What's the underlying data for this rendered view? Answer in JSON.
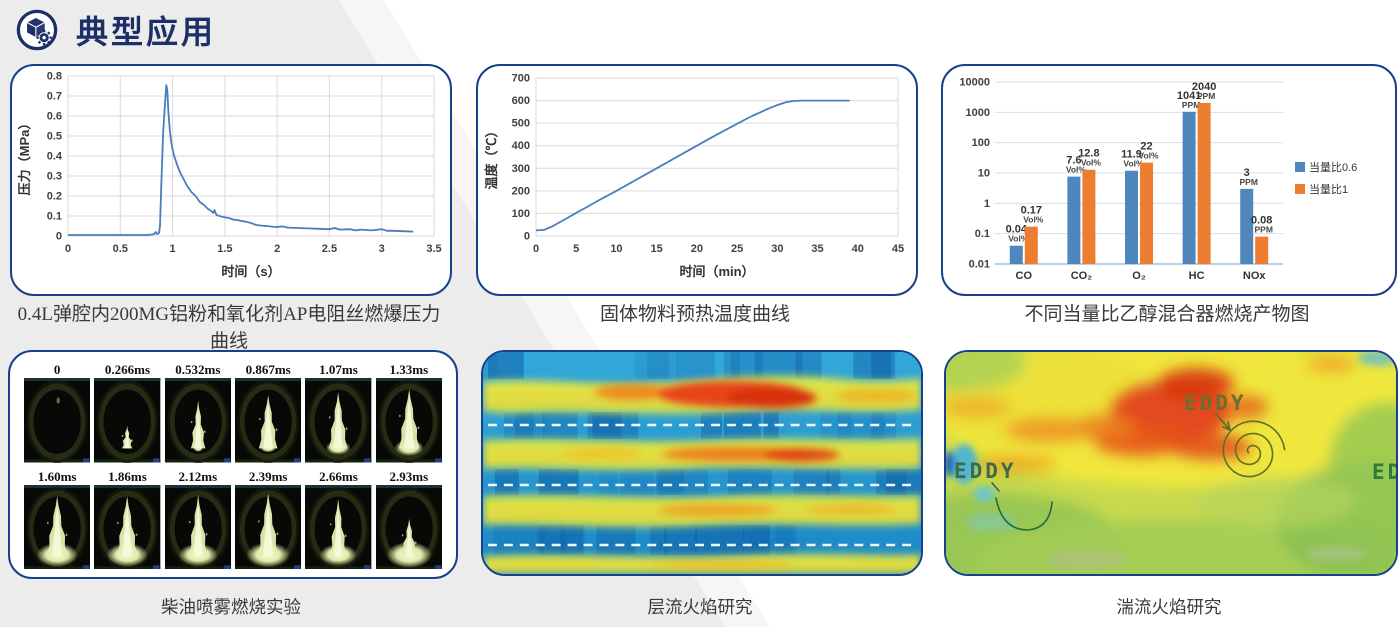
{
  "header": {
    "title": "典型应用",
    "icon": "cube-gear-icon"
  },
  "captions": {
    "pressure": "0.4L弹腔内200MG铝粉和氧化剂AP电阻丝燃爆压力曲线",
    "temperature": "固体物料预热温度曲线",
    "combustion": "不同当量比乙醇混合器燃烧产物图",
    "diesel": "柴油喷雾燃烧实验",
    "laminar": "层流火焰研究",
    "turbulent": "湍流火焰研究"
  },
  "chart_data": [
    {
      "id": "pressure",
      "type": "line",
      "title": "0.4L弹腔内200MG铝粉和氧化剂AP电阻丝燃爆压力曲线",
      "xlabel": "时间（s）",
      "ylabel": "压力（MPa）",
      "xlim": [
        0,
        3.5
      ],
      "ylim": [
        0,
        0.8
      ],
      "xticks": [
        0,
        0.5,
        1,
        1.5,
        2,
        2.5,
        3,
        3.5
      ],
      "yticks": [
        0,
        0.1,
        0.2,
        0.3,
        0.4,
        0.5,
        0.6,
        0.7,
        0.8
      ],
      "grid": "both",
      "line_color": "#4a7ebb",
      "points": [
        [
          0,
          0.005
        ],
        [
          0.2,
          0.005
        ],
        [
          0.4,
          0.005
        ],
        [
          0.6,
          0.005
        ],
        [
          0.75,
          0.005
        ],
        [
          0.82,
          0.008
        ],
        [
          0.84,
          0.02
        ],
        [
          0.85,
          0.01
        ],
        [
          0.87,
          0.015
        ],
        [
          0.88,
          0.05
        ],
        [
          0.895,
          0.3
        ],
        [
          0.91,
          0.52
        ],
        [
          0.925,
          0.64
        ],
        [
          0.94,
          0.755
        ],
        [
          0.95,
          0.73
        ],
        [
          0.96,
          0.62
        ],
        [
          0.975,
          0.52
        ],
        [
          0.99,
          0.46
        ],
        [
          1.01,
          0.41
        ],
        [
          1.04,
          0.36
        ],
        [
          1.07,
          0.32
        ],
        [
          1.1,
          0.29
        ],
        [
          1.14,
          0.25
        ],
        [
          1.18,
          0.22
        ],
        [
          1.22,
          0.2
        ],
        [
          1.26,
          0.17
        ],
        [
          1.3,
          0.155
        ],
        [
          1.34,
          0.135
        ],
        [
          1.37,
          0.125
        ],
        [
          1.39,
          0.115
        ],
        [
          1.4,
          0.13
        ],
        [
          1.42,
          0.105
        ],
        [
          1.46,
          0.098
        ],
        [
          1.5,
          0.093
        ],
        [
          1.54,
          0.09
        ],
        [
          1.58,
          0.082
        ],
        [
          1.62,
          0.08
        ],
        [
          1.66,
          0.075
        ],
        [
          1.7,
          0.072
        ],
        [
          1.75,
          0.065
        ],
        [
          1.8,
          0.055
        ],
        [
          1.85,
          0.052
        ],
        [
          1.9,
          0.05
        ],
        [
          1.95,
          0.047
        ],
        [
          2,
          0.045
        ],
        [
          2.05,
          0.048
        ],
        [
          2.1,
          0.042
        ],
        [
          2.2,
          0.04
        ],
        [
          2.3,
          0.038
        ],
        [
          2.4,
          0.036
        ],
        [
          2.5,
          0.034
        ],
        [
          2.55,
          0.04
        ],
        [
          2.6,
          0.032
        ],
        [
          2.7,
          0.034
        ],
        [
          2.75,
          0.028
        ],
        [
          2.8,
          0.032
        ],
        [
          2.9,
          0.028
        ],
        [
          3,
          0.034
        ],
        [
          3.05,
          0.026
        ],
        [
          3.1,
          0.026
        ],
        [
          3.2,
          0.024
        ],
        [
          3.3,
          0.022
        ]
      ]
    },
    {
      "id": "temperature",
      "type": "line",
      "title": "固体物料预热温度曲线",
      "xlabel": "时间（min）",
      "ylabel": "温度（℃）",
      "xlim": [
        0,
        45
      ],
      "ylim": [
        0,
        700
      ],
      "xticks": [
        0,
        5,
        10,
        15,
        20,
        25,
        30,
        35,
        40,
        45
      ],
      "yticks": [
        0,
        100,
        200,
        300,
        400,
        500,
        600,
        700
      ],
      "grid": "horizontal",
      "line_color": "#4a7ebb",
      "points": [
        [
          0,
          25
        ],
        [
          1,
          27
        ],
        [
          2,
          42
        ],
        [
          3,
          62
        ],
        [
          4,
          82
        ],
        [
          5,
          103
        ],
        [
          6,
          122
        ],
        [
          8,
          162
        ],
        [
          10,
          200
        ],
        [
          12,
          240
        ],
        [
          14,
          280
        ],
        [
          16,
          320
        ],
        [
          18,
          360
        ],
        [
          20,
          400
        ],
        [
          22,
          440
        ],
        [
          24,
          478
        ],
        [
          26,
          516
        ],
        [
          27,
          534
        ],
        [
          28,
          550
        ],
        [
          29,
          566
        ],
        [
          30,
          580
        ],
        [
          31,
          592
        ],
        [
          32,
          598
        ],
        [
          33,
          600
        ],
        [
          35,
          600
        ],
        [
          37,
          600
        ],
        [
          39,
          600
        ]
      ]
    },
    {
      "id": "combustion",
      "type": "bar",
      "scale": "log",
      "title": "不同当量比乙醇混合器燃烧产物图",
      "ylim": [
        0.01,
        10000
      ],
      "ytick_labels": [
        "0.01",
        "0.1",
        "1",
        "10",
        "100",
        "1000",
        "10000"
      ],
      "categories": [
        "CO",
        "CO₂",
        "O₂",
        "HC",
        "NOx"
      ],
      "legend_position": "right",
      "series": [
        {
          "name": "当量比0.6",
          "color": "#4f86be",
          "values": [
            0.04,
            7.6,
            11.9,
            1041,
            3
          ],
          "labels": [
            "0.04",
            "7.6",
            "11.9",
            "1041",
            "3"
          ],
          "units": [
            "Vol%",
            "Vol%",
            "Vol%",
            "PPM",
            "PPM"
          ]
        },
        {
          "name": "当量比1",
          "color": "#ed7d31",
          "values": [
            0.17,
            12.8,
            22,
            2040,
            0.08
          ],
          "labels": [
            "0.17",
            "12.8",
            "22",
            "2040",
            "0.08"
          ],
          "units": [
            "Vol%",
            "Vol%",
            "Vol%",
            "PPM",
            "PPM"
          ]
        }
      ]
    }
  ],
  "diesel_frames": [
    {
      "label": "0",
      "h": 2,
      "w": 1,
      "pool": 0
    },
    {
      "label": "0.266ms",
      "h": 16,
      "w": 5,
      "pool": 0
    },
    {
      "label": "0.532ms",
      "h": 34,
      "w": 7,
      "pool": 5
    },
    {
      "label": "0.867ms",
      "h": 38,
      "w": 9,
      "pool": 8
    },
    {
      "label": "1.07ms",
      "h": 40,
      "w": 9,
      "pool": 12
    },
    {
      "label": "1.33ms",
      "h": 42,
      "w": 10,
      "pool": 14
    },
    {
      "label": "1.60ms",
      "h": 42,
      "w": 10,
      "pool": 20
    },
    {
      "label": "1.86ms",
      "h": 42,
      "w": 10,
      "pool": 20
    },
    {
      "label": "2.12ms",
      "h": 43,
      "w": 9,
      "pool": 19
    },
    {
      "label": "2.39ms",
      "h": 44,
      "w": 10,
      "pool": 21
    },
    {
      "label": "2.66ms",
      "h": 40,
      "w": 8,
      "pool": 18
    },
    {
      "label": "2.93ms",
      "h": 26,
      "w": 7,
      "pool": 22
    }
  ],
  "turbulent_labels": {
    "eddy_top": "EDDY",
    "eddy_left": "EDDY",
    "ed_right": "ED"
  },
  "colors": {
    "accent_navy": "#1c2f66",
    "panel_border": "#17418a",
    "line_blue": "#4a7ebb",
    "bar_blue": "#4f86be",
    "bar_orange": "#ed7d31",
    "bg_gray": "#ececec"
  }
}
